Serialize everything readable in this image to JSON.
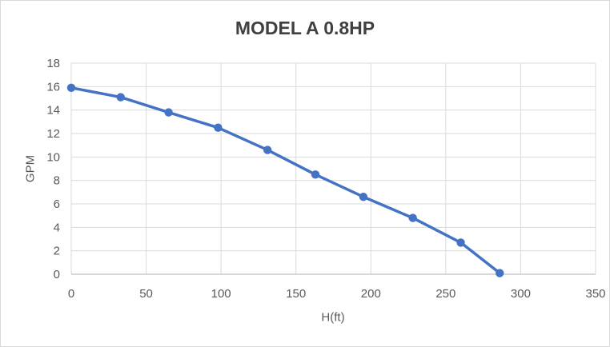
{
  "chart_data": {
    "type": "line",
    "title": "MODEL A 0.8HP",
    "xlabel": "H(ft)",
    "ylabel": "GPM",
    "x": [
      0,
      33,
      65,
      98,
      131,
      163,
      195,
      228,
      260,
      286
    ],
    "y": [
      15.9,
      15.1,
      13.8,
      12.5,
      10.6,
      8.5,
      6.6,
      4.8,
      2.7,
      0.1
    ],
    "xlim": [
      0,
      350
    ],
    "ylim": [
      0,
      18
    ],
    "x_ticks": [
      0,
      50,
      100,
      150,
      200,
      250,
      300,
      350
    ],
    "y_ticks": [
      0,
      2,
      4,
      6,
      8,
      10,
      12,
      14,
      16,
      18
    ],
    "grid": true,
    "legend": false,
    "series_name": "GPM vs H(ft)",
    "marker": "circle"
  },
  "colors": {
    "line": "#4472C4",
    "marker": "#4472C4",
    "gridline": "#D9D9D9",
    "axis_line": "#BFBFBF",
    "tick_label": "#595959",
    "title": "#404040",
    "border": "#D9D9D9",
    "background": "#FFFFFF"
  }
}
